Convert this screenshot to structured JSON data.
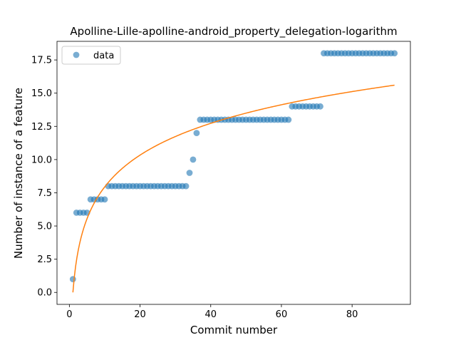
{
  "chart_data": {
    "type": "scatter",
    "title": "Apolline-Lille-apolline-android_property_delegation-logarithm",
    "xlabel": "Commit number",
    "ylabel": "Number of instance of a feature",
    "xlim": [
      -3.5,
      96.5
    ],
    "ylim": [
      -0.9,
      18.9
    ],
    "xticks": [
      0,
      20,
      40,
      60,
      80
    ],
    "xtick_labels": [
      "0",
      "20",
      "40",
      "60",
      "80"
    ],
    "yticks": [
      0,
      2.5,
      5,
      7.5,
      10,
      12.5,
      15,
      17.5
    ],
    "ytick_labels": [
      "0.0",
      "2.5",
      "5.0",
      "7.5",
      "10.0",
      "12.5",
      "15.0",
      "17.5"
    ],
    "grid": false,
    "legend": {
      "position": "top-left",
      "entries": [
        "data"
      ]
    },
    "series": [
      {
        "name": "data",
        "kind": "scatter",
        "color": "#1f77b4",
        "x": [
          1,
          2,
          3,
          4,
          5,
          6,
          7,
          8,
          9,
          10,
          11,
          12,
          13,
          14,
          15,
          16,
          17,
          18,
          19,
          20,
          21,
          22,
          23,
          24,
          25,
          26,
          27,
          28,
          29,
          30,
          31,
          32,
          33,
          34,
          35,
          36,
          37,
          38,
          39,
          40,
          41,
          42,
          43,
          44,
          45,
          46,
          47,
          48,
          49,
          50,
          51,
          52,
          53,
          54,
          55,
          56,
          57,
          58,
          59,
          60,
          61,
          62,
          63,
          64,
          65,
          66,
          67,
          68,
          69,
          70,
          71,
          72,
          73,
          74,
          75,
          76,
          77,
          78,
          79,
          80,
          81,
          82,
          83,
          84,
          85,
          86,
          87,
          88,
          89,
          90,
          91,
          92
        ],
        "y": [
          1,
          6,
          6,
          6,
          6,
          7,
          7,
          7,
          7,
          7,
          8,
          8,
          8,
          8,
          8,
          8,
          8,
          8,
          8,
          8,
          8,
          8,
          8,
          8,
          8,
          8,
          8,
          8,
          8,
          8,
          8,
          8,
          8,
          9,
          10,
          12,
          13,
          13,
          13,
          13,
          13,
          13,
          13,
          13,
          13,
          13,
          13,
          13,
          13,
          13,
          13,
          13,
          13,
          13,
          13,
          13,
          13,
          13,
          13,
          13,
          13,
          13,
          14,
          14,
          14,
          14,
          14,
          14,
          14,
          14,
          14,
          18,
          18,
          18,
          18,
          18,
          18,
          18,
          18,
          18,
          18,
          18,
          18,
          18,
          18,
          18,
          18,
          18,
          18,
          18,
          18,
          18
        ]
      },
      {
        "kind": "line",
        "color": "#ff7f0e",
        "model": "logarithmic fit",
        "a": 3.45,
        "b": 0.0,
        "x_range": [
          1,
          92
        ]
      }
    ]
  }
}
